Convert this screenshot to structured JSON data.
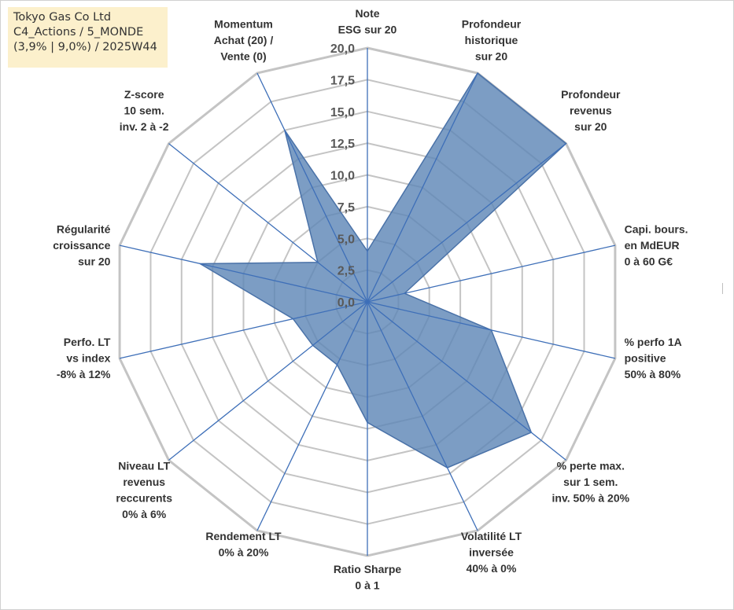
{
  "info": {
    "company": "Tokyo Gas Co Ltd",
    "portfolio": "C4_Actions / 5_MONDE",
    "detail": "(3,9% | 9,0%) / 2025W44"
  },
  "colors": {
    "fill": "#5f87b7",
    "stroke": "#4a72a8",
    "axis": "#3e6fb8",
    "grid": "#c4c4c4",
    "info_bg": "#fcf0cc"
  },
  "chart_data": {
    "type": "radar",
    "title": "",
    "rmin": 0,
    "rmax": 20,
    "ticks": [
      "0,0",
      "2,5",
      "5,0",
      "7,5",
      "10,0",
      "12,5",
      "15,0",
      "17,5",
      "20,0"
    ],
    "categories": [
      [
        "Note",
        "ESG sur 20"
      ],
      [
        "Profondeur",
        "historique",
        "sur 20"
      ],
      [
        "Profondeur",
        "revenus",
        "sur 20"
      ],
      [
        "Capi. bours.",
        "en MdEUR",
        "0 à 60 G€"
      ],
      [
        "% perfo 1A",
        "positive",
        "50% à 80%"
      ],
      [
        "% perte max.",
        "sur 1 sem.",
        "inv. 50% à 20%"
      ],
      [
        "Volatilité LT",
        "inversée",
        "40% à 0%"
      ],
      [
        "Ratio Sharpe",
        "0 à 1"
      ],
      [
        "Rendement LT",
        "0% à 20%"
      ],
      [
        "Niveau LT",
        "revenus",
        "reccurents",
        "0% à 6%"
      ],
      [
        "Perfo. LT",
        "vs index",
        "-8% à 12%"
      ],
      [
        "Régularité",
        "croissance",
        "sur 20"
      ],
      [
        "Z-score",
        "10 sem.",
        "inv. 2 à -2"
      ],
      [
        "Momentum",
        "Achat (20) /",
        "Vente (0)"
      ]
    ],
    "series": [
      {
        "name": "Tokyo Gas Co Ltd",
        "values": [
          4,
          20,
          20,
          3,
          10,
          16.5,
          14.5,
          9.5,
          5.5,
          5.5,
          6,
          13.5,
          5,
          15
        ]
      }
    ]
  }
}
